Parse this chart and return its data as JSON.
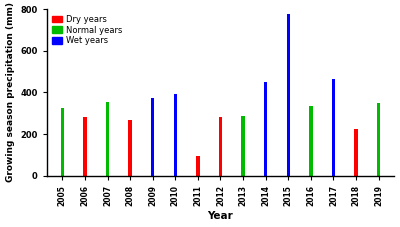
{
  "years": [
    2005,
    2006,
    2007,
    2008,
    2009,
    2010,
    2011,
    2012,
    2013,
    2014,
    2015,
    2016,
    2017,
    2018,
    2019
  ],
  "values": [
    325,
    280,
    355,
    268,
    375,
    390,
    95,
    282,
    288,
    450,
    775,
    335,
    465,
    222,
    348
  ],
  "colors": [
    "#00bb00",
    "#ff0000",
    "#00bb00",
    "#ff0000",
    "#0000ff",
    "#0000ff",
    "#ff0000",
    "#ff0000",
    "#00bb00",
    "#0000ff",
    "#0000ff",
    "#00bb00",
    "#0000ff",
    "#ff0000",
    "#00bb00"
  ],
  "ylabel": "Growing season precipitation (mm)",
  "xlabel": "Year",
  "ylim": [
    0,
    800
  ],
  "yticks": [
    0,
    200,
    400,
    600,
    800
  ],
  "legend_labels": [
    "Dry years",
    "Normal years",
    "Wet years"
  ],
  "legend_colors": [
    "#ff0000",
    "#00bb00",
    "#0000ff"
  ],
  "bar_width": 0.15,
  "background_color": "#ffffff"
}
